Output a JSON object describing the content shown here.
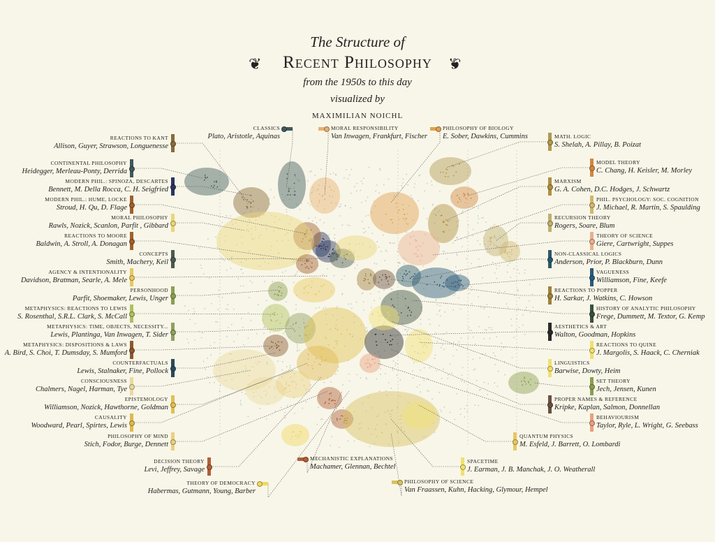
{
  "header": {
    "title_line1": "The Structure of",
    "title_line2": "Recent Philosophy",
    "subtitle": "from the 1950s to this day",
    "byline": "visualized by",
    "author": "MAXIMILIAN NOICHL",
    "flourish_icon": "ornament-scroll"
  },
  "colors": {
    "background": "#f8f6e8",
    "points": "#8a99aa"
  },
  "clusters": [
    {
      "label": "Reactions to Kant",
      "authors": "Allison, Guyer, Strawson, Longuenesse",
      "color": "#8a6a3a"
    },
    {
      "label": "Continental Philosophy",
      "authors": "Heidegger, Merleau-Ponty, Derrida",
      "color": "#3e5a5a"
    },
    {
      "label": "Modern Phil.: Spinoza, Descartes",
      "authors": "Bennett, M. Della Rocca, C. H. Seigfried",
      "color": "#2a3560"
    },
    {
      "label": "Modern Phil.: Hume, Locke",
      "authors": "Stroud, H. Qu, D. Flage",
      "color": "#a0602e"
    },
    {
      "label": "Moral Philosophy",
      "authors": "Rawls, Nozick, Scanlon, Parfit , Gibbard",
      "color": "#ead67a"
    },
    {
      "label": "Reactions to Moore",
      "authors": "Baldwin, A. Stroll, A. Donagan",
      "color": "#a0602e"
    },
    {
      "label": "Concepts",
      "authors": "Smith, Machery, Keil",
      "color": "#4a5a50"
    },
    {
      "label": "Agency & Intentionality",
      "authors": "Davidson, Bratman, Searle, A. Mele",
      "color": "#e8c860"
    },
    {
      "label": "Personhood",
      "authors": "Parfit, Shoemaker, Lewis, Unger",
      "color": "#8aa050"
    },
    {
      "label": "Metaphysics: Reactions to Lewis",
      "authors": "S. Rosenthal, S.R.L. Clark, S. McCall",
      "color": "#b0c060"
    },
    {
      "label": "Metaphysics: Time, Objects, Necessity...",
      "authors": "Lewis, Plantinga, Van Inwagen, T. Sider",
      "color": "#90a060"
    },
    {
      "label": "Metaphysics: Dispositions & Laws",
      "authors": "A. Bird, S. Choi, T. Dumsday, S. Mumford",
      "color": "#8a5a30"
    },
    {
      "label": "Counterfactuals",
      "authors": "Lewis, Stalnaker, Fine, Pollock",
      "color": "#2a4a5a"
    },
    {
      "label": "Consciousness",
      "authors": "Chalmers, Nagel, Harman, Tye",
      "color": "#ead9a0"
    },
    {
      "label": "Epistemology",
      "authors": "Williamson, Nozick, Hawthorne, Goldman",
      "color": "#e0c050"
    },
    {
      "label": "Causality",
      "authors": "Woodward, Pearl, Spirtes, Lewis",
      "color": "#e0b850"
    },
    {
      "label": "Philosophy of Mind",
      "authors": "Stich, Fodor, Burge, Dennett",
      "color": "#e8d080"
    },
    {
      "label": "Decision Theory",
      "authors": "Levi, Jeffrey, Savage",
      "color": "#b0603a"
    },
    {
      "label": "Theory of Democracy",
      "authors": "Habermas, Gutmann, Young, Barber",
      "color": "#f0d860"
    },
    {
      "label": "Classics",
      "authors": "Plato, Aristotle, Aquinas",
      "color": "#3e5a5a"
    },
    {
      "label": "Moral Responsibility",
      "authors": "Van Inwagen, Frankfurt, Fischer",
      "color": "#e8b070"
    },
    {
      "label": "Philosophy of Biology",
      "authors": "E. Sober, Dawkins, Cummins",
      "color": "#e0a050"
    },
    {
      "label": "Math. Logic",
      "authors": "S. Shelah, A. Pillay, B. Poizat",
      "color": "#b09850"
    },
    {
      "label": "Model Theory",
      "authors": "C. Chang, H. Keisler, M. Morley",
      "color": "#d08840"
    },
    {
      "label": "Marxism",
      "authors": "G. A. Cohen, D.C. Hodges, J. Schwartz",
      "color": "#b09040"
    },
    {
      "label": "Phil. Psychology: Soc. Cognition",
      "authors": "J. Michael, R. Martin, S. Spaulding",
      "color": "#d0b870"
    },
    {
      "label": "Recursion Theory",
      "authors": "Rogers, Soare, Blum",
      "color": "#c0b070"
    },
    {
      "label": "Theory of Science",
      "authors": "Giere, Cartwright, Suppes",
      "color": "#e8b090"
    },
    {
      "label": "Non-Classical Logics",
      "authors": "Anderson, Prior, P. Blackburn, Dunn",
      "color": "#2a5a6a"
    },
    {
      "label": "Vagueness",
      "authors": "Williamson, Fine, Keefe",
      "color": "#2a5a7a"
    },
    {
      "label": "Reactions to Popper",
      "authors": "H. Sarkar, J. Watkins, C. Howson",
      "color": "#a08040"
    },
    {
      "label": "History of Analytic Philosophy",
      "authors": "Frege, Dummett, M. Textor, G. Kemp",
      "color": "#3a5040"
    },
    {
      "label": "Aesthetics & Art",
      "authors": "Walton, Goodman, Hopkins",
      "color": "#2a2a2a"
    },
    {
      "label": "Reactions to Quine",
      "authors": "J. Margolis, S. Haack, C. Cherniak",
      "color": "#f0e070"
    },
    {
      "label": "Linguistics",
      "authors": "Barwise, Dowty, Heim",
      "color": "#f0e070"
    },
    {
      "label": "Set Theory",
      "authors": "Jech, Jensen, Kunen",
      "color": "#8aa050"
    },
    {
      "label": "Proper Names & Reference",
      "authors": "Kripke, Kaplan, Salmon, Donnellan",
      "color": "#6a5040"
    },
    {
      "label": "Behaviourism",
      "authors": "Taylor, Ryle, L. Wright, G. Seebass",
      "color": "#e8a080"
    },
    {
      "label": "Quantum Physics",
      "authors": "M. Esfeld, J. Barrett, O. Lombardi",
      "color": "#e8c860"
    },
    {
      "label": "Spacetime",
      "authors": "J. Earman, J. B. Manchak, J. O. Weatherall",
      "color": "#f0e070"
    },
    {
      "label": "Mechanistic Explanations",
      "authors": "Machamer, Glennan, Bechtel",
      "color": "#b0603a"
    },
    {
      "label": "Philosophy of Science",
      "authors": "Van Fraassen, Kuhn, Hacking, Glymour, Hempel",
      "color": "#d8c060"
    }
  ]
}
